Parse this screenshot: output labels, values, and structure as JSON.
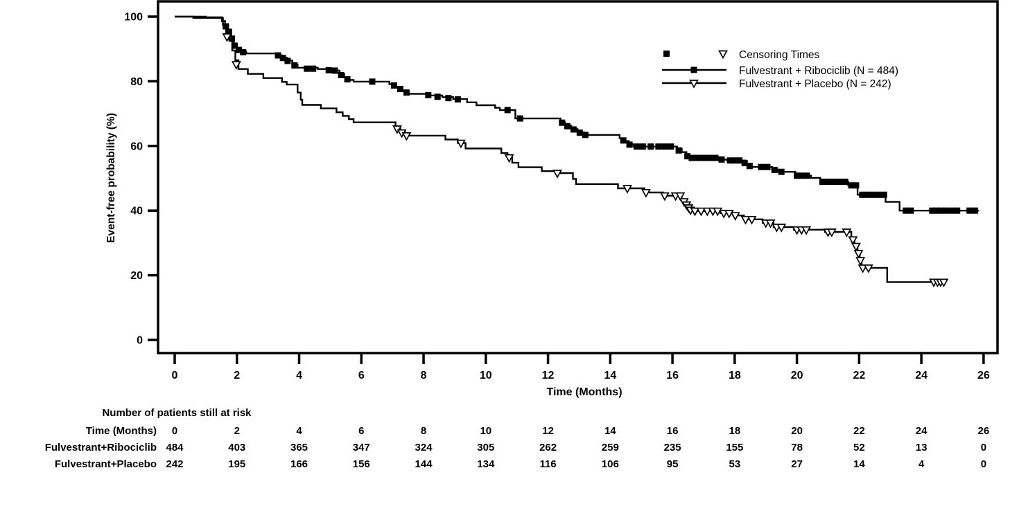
{
  "chart_data": {
    "type": "line",
    "subtype": "kaplan-meier-step",
    "ylabel": "Event-free probability (%)",
    "xlabel": "Time (Months)",
    "xlim": [
      0,
      26
    ],
    "ylim": [
      0,
      100
    ],
    "x_ticks": [
      0,
      2,
      4,
      6,
      8,
      10,
      12,
      14,
      16,
      18,
      20,
      22,
      24,
      26
    ],
    "y_ticks": [
      0,
      20,
      40,
      60,
      80,
      100
    ],
    "grid": false,
    "frame": true,
    "line_color": "#000000",
    "legend": {
      "position": "top-right",
      "censoring_label": "Censoring Times"
    },
    "series": [
      {
        "name": "Fulvestrant + Ribociclib (N = 484)",
        "n": 484,
        "color": "#000000",
        "marker": "filled-square",
        "steps": [
          [
            0,
            100
          ],
          [
            1.0,
            99.8
          ],
          [
            1.45,
            99.8
          ],
          [
            1.52,
            98.6
          ],
          [
            1.62,
            97.4
          ],
          [
            1.72,
            95.8
          ],
          [
            1.82,
            93.8
          ],
          [
            1.9,
            91.5
          ],
          [
            2.0,
            89.7
          ],
          [
            2.15,
            89.2
          ],
          [
            2.3,
            88.6
          ],
          [
            3.3,
            88.0
          ],
          [
            3.45,
            87.3
          ],
          [
            3.6,
            86.4
          ],
          [
            3.78,
            85.2
          ],
          [
            3.95,
            84.2
          ],
          [
            4.6,
            83.8
          ],
          [
            5.0,
            83.3
          ],
          [
            5.3,
            82.2
          ],
          [
            5.45,
            81.2
          ],
          [
            5.6,
            80.4
          ],
          [
            5.75,
            79.9
          ],
          [
            6.9,
            79.1
          ],
          [
            7.1,
            78.2
          ],
          [
            7.3,
            77.1
          ],
          [
            7.5,
            76.1
          ],
          [
            8.2,
            75.6
          ],
          [
            8.6,
            75.1
          ],
          [
            8.95,
            74.5
          ],
          [
            9.4,
            73.5
          ],
          [
            9.7,
            72.6
          ],
          [
            10.3,
            71.8
          ],
          [
            10.45,
            71.1
          ],
          [
            10.95,
            68.5
          ],
          [
            12.4,
            67.3
          ],
          [
            12.55,
            66.2
          ],
          [
            12.75,
            65.2
          ],
          [
            12.95,
            64.2
          ],
          [
            13.15,
            63.4
          ],
          [
            14.3,
            62.4
          ],
          [
            14.45,
            61.5
          ],
          [
            14.6,
            60.5
          ],
          [
            14.75,
            59.8
          ],
          [
            16.15,
            59.1
          ],
          [
            16.3,
            58.1
          ],
          [
            16.45,
            56.9
          ],
          [
            16.55,
            56.3
          ],
          [
            17.5,
            55.8
          ],
          [
            17.75,
            55.5
          ],
          [
            18.35,
            54.5
          ],
          [
            18.5,
            53.5
          ],
          [
            19.2,
            52.7
          ],
          [
            19.4,
            52.0
          ],
          [
            19.95,
            50.8
          ],
          [
            20.45,
            50.1
          ],
          [
            20.75,
            48.9
          ],
          [
            21.65,
            47.8
          ],
          [
            21.95,
            44.9
          ],
          [
            22.85,
            42.7
          ],
          [
            23.3,
            40.0
          ],
          [
            25.85,
            40.0
          ]
        ],
        "censor_marks": [
          [
            1.64,
            97.0
          ],
          [
            1.74,
            95.3
          ],
          [
            1.84,
            93.2
          ],
          [
            1.93,
            91.0
          ],
          [
            2.06,
            89.7
          ],
          [
            2.2,
            89.0
          ],
          [
            3.32,
            88.0
          ],
          [
            3.48,
            87.2
          ],
          [
            3.63,
            86.3
          ],
          [
            3.85,
            84.9
          ],
          [
            4.25,
            83.9
          ],
          [
            4.45,
            83.9
          ],
          [
            4.95,
            83.4
          ],
          [
            5.15,
            83.3
          ],
          [
            5.35,
            81.9
          ],
          [
            5.55,
            80.6
          ],
          [
            6.35,
            79.9
          ],
          [
            7.05,
            78.7
          ],
          [
            7.25,
            77.6
          ],
          [
            7.45,
            76.5
          ],
          [
            8.15,
            75.7
          ],
          [
            8.45,
            75.2
          ],
          [
            8.8,
            74.8
          ],
          [
            9.1,
            74.4
          ],
          [
            10.7,
            71.1
          ],
          [
            11.1,
            68.5
          ],
          [
            12.45,
            67.2
          ],
          [
            12.62,
            66.1
          ],
          [
            12.82,
            65.1
          ],
          [
            13.02,
            64.1
          ],
          [
            13.2,
            63.4
          ],
          [
            14.42,
            61.7
          ],
          [
            14.62,
            60.4
          ],
          [
            14.85,
            59.8
          ],
          [
            15.05,
            59.8
          ],
          [
            15.3,
            59.8
          ],
          [
            15.55,
            59.8
          ],
          [
            15.75,
            59.8
          ],
          [
            15.95,
            59.8
          ],
          [
            16.2,
            58.6
          ],
          [
            16.48,
            56.8
          ],
          [
            16.62,
            56.3
          ],
          [
            16.78,
            56.3
          ],
          [
            16.92,
            56.3
          ],
          [
            17.08,
            56.3
          ],
          [
            17.22,
            56.3
          ],
          [
            17.38,
            56.3
          ],
          [
            17.58,
            55.8
          ],
          [
            17.85,
            55.5
          ],
          [
            18.0,
            55.5
          ],
          [
            18.15,
            55.5
          ],
          [
            18.32,
            54.7
          ],
          [
            18.48,
            53.8
          ],
          [
            18.85,
            53.5
          ],
          [
            19.05,
            53.5
          ],
          [
            19.28,
            52.6
          ],
          [
            19.5,
            52.0
          ],
          [
            20.0,
            50.8
          ],
          [
            20.18,
            50.8
          ],
          [
            20.32,
            50.8
          ],
          [
            20.82,
            48.9
          ],
          [
            21.0,
            48.9
          ],
          [
            21.18,
            48.9
          ],
          [
            21.38,
            48.9
          ],
          [
            21.55,
            48.9
          ],
          [
            21.75,
            47.8
          ],
          [
            21.9,
            47.8
          ],
          [
            22.1,
            44.9
          ],
          [
            22.28,
            44.9
          ],
          [
            22.45,
            44.9
          ],
          [
            22.62,
            44.9
          ],
          [
            22.8,
            44.9
          ],
          [
            23.5,
            40.0
          ],
          [
            23.66,
            40.0
          ],
          [
            24.35,
            40.0
          ],
          [
            24.5,
            40.0
          ],
          [
            24.65,
            40.0
          ],
          [
            24.8,
            40.0
          ],
          [
            25.0,
            40.0
          ],
          [
            25.15,
            40.0
          ],
          [
            25.55,
            40.0
          ],
          [
            25.72,
            40.0
          ]
        ]
      },
      {
        "name": "Fulvestrant + Placebo (N = 242)",
        "n": 242,
        "color": "#000000",
        "marker": "open-triangle-down",
        "steps": [
          [
            0,
            100
          ],
          [
            0.6,
            99.6
          ],
          [
            1.45,
            99.6
          ],
          [
            1.55,
            97.5
          ],
          [
            1.65,
            95.0
          ],
          [
            1.75,
            92.8
          ],
          [
            1.85,
            89.5
          ],
          [
            1.95,
            86.5
          ],
          [
            2.05,
            83.8
          ],
          [
            2.35,
            82.3
          ],
          [
            2.85,
            81.0
          ],
          [
            3.45,
            79.8
          ],
          [
            3.6,
            79.0
          ],
          [
            3.95,
            76.5
          ],
          [
            4.05,
            74.3
          ],
          [
            4.1,
            72.7
          ],
          [
            4.7,
            71.6
          ],
          [
            5.2,
            70.4
          ],
          [
            5.4,
            69.3
          ],
          [
            5.6,
            68.3
          ],
          [
            5.75,
            67.3
          ],
          [
            7.1,
            65.8
          ],
          [
            7.25,
            64.4
          ],
          [
            7.4,
            63.2
          ],
          [
            8.7,
            62.0
          ],
          [
            9.1,
            60.9
          ],
          [
            9.35,
            59.2
          ],
          [
            10.5,
            57.8
          ],
          [
            10.7,
            56.6
          ],
          [
            10.85,
            54.8
          ],
          [
            11.05,
            53.4
          ],
          [
            11.8,
            52.2
          ],
          [
            12.35,
            51.6
          ],
          [
            12.8,
            49.8
          ],
          [
            12.9,
            48.2
          ],
          [
            14.25,
            46.9
          ],
          [
            15.1,
            45.6
          ],
          [
            15.7,
            44.6
          ],
          [
            16.3,
            43.5
          ],
          [
            16.4,
            42.2
          ],
          [
            16.5,
            40.8
          ],
          [
            16.6,
            39.9
          ],
          [
            17.55,
            39.2
          ],
          [
            17.95,
            38.5
          ],
          [
            18.3,
            37.3
          ],
          [
            18.9,
            36.2
          ],
          [
            19.25,
            34.9
          ],
          [
            19.9,
            34.1
          ],
          [
            20.9,
            33.4
          ],
          [
            21.75,
            31.5
          ],
          [
            21.85,
            29.5
          ],
          [
            21.95,
            27.3
          ],
          [
            22.02,
            24.5
          ],
          [
            22.08,
            22.3
          ],
          [
            22.9,
            17.9
          ],
          [
            24.8,
            17.9
          ]
        ],
        "censor_marks": [
          [
            1.68,
            93.8
          ],
          [
            1.98,
            85.2
          ],
          [
            7.15,
            65.3
          ],
          [
            7.3,
            64.1
          ],
          [
            7.45,
            63.2
          ],
          [
            9.2,
            60.9
          ],
          [
            10.75,
            56.4
          ],
          [
            12.3,
            51.6
          ],
          [
            14.55,
            46.9
          ],
          [
            15.15,
            45.6
          ],
          [
            15.75,
            44.6
          ],
          [
            16.1,
            44.6
          ],
          [
            16.25,
            44.6
          ],
          [
            16.37,
            42.8
          ],
          [
            16.45,
            41.8
          ],
          [
            16.52,
            40.9
          ],
          [
            16.58,
            40.2
          ],
          [
            16.72,
            39.9
          ],
          [
            16.92,
            39.9
          ],
          [
            17.12,
            39.9
          ],
          [
            17.3,
            39.9
          ],
          [
            17.45,
            39.9
          ],
          [
            17.65,
            39.2
          ],
          [
            17.82,
            39.2
          ],
          [
            18.02,
            38.5
          ],
          [
            18.35,
            37.3
          ],
          [
            18.55,
            37.3
          ],
          [
            19.0,
            36.2
          ],
          [
            19.15,
            36.2
          ],
          [
            19.35,
            34.9
          ],
          [
            19.5,
            34.9
          ],
          [
            20.0,
            34.1
          ],
          [
            20.15,
            34.1
          ],
          [
            20.3,
            34.1
          ],
          [
            21.0,
            33.4
          ],
          [
            21.12,
            33.4
          ],
          [
            21.6,
            33.4
          ],
          [
            21.8,
            31.0
          ],
          [
            21.9,
            29.0
          ],
          [
            21.98,
            26.8
          ],
          [
            22.04,
            24.6
          ],
          [
            22.12,
            22.3
          ],
          [
            22.3,
            22.3
          ],
          [
            24.4,
            17.9
          ],
          [
            24.52,
            17.9
          ],
          [
            24.62,
            17.9
          ],
          [
            24.72,
            17.9
          ]
        ]
      }
    ]
  },
  "risk_table": {
    "title": "Number of patients still at risk",
    "time_label": "Time (Months)",
    "times": [
      0,
      2,
      4,
      6,
      8,
      10,
      12,
      14,
      16,
      18,
      20,
      22,
      24,
      26
    ],
    "rows": [
      {
        "label": "Fulvestrant+Ribociclib",
        "values": [
          484,
          403,
          365,
          347,
          324,
          305,
          262,
          259,
          235,
          155,
          78,
          52,
          13,
          0
        ]
      },
      {
        "label": "Fulvestrant+Placebo",
        "values": [
          242,
          195,
          166,
          156,
          144,
          134,
          116,
          106,
          95,
          53,
          27,
          14,
          4,
          0
        ]
      }
    ]
  }
}
